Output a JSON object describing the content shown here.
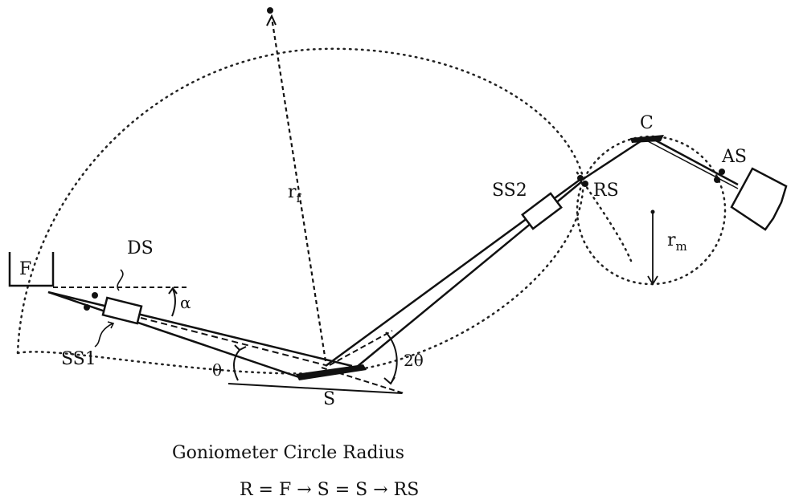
{
  "labels": {
    "F": "F",
    "DS": "DS",
    "SS1": "SS1",
    "alpha": "α",
    "theta": "θ",
    "S": "S",
    "two_theta": "2θ",
    "r_f_base": "r",
    "r_f_sub": "f",
    "SS2": "SS2",
    "RS": "RS",
    "C": "C",
    "AS": "AS",
    "r_m_base": "r",
    "r_m_sub": "m"
  },
  "caption": {
    "title": "Goniometer Circle Radius",
    "formula": "R = F → S = S → RS"
  }
}
